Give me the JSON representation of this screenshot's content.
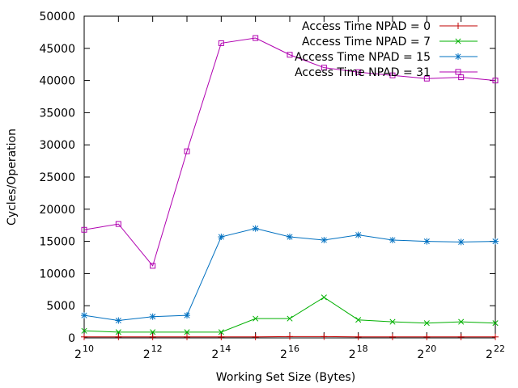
{
  "chart_data": {
    "type": "line",
    "title": "",
    "xlabel": "Working Set Size (Bytes)",
    "ylabel": "Cycles/Operation",
    "x_scale": "log2",
    "xlim": [
      10,
      22
    ],
    "ylim": [
      0,
      50000
    ],
    "x_ticks": [
      {
        "base": "2",
        "exp": "10"
      },
      {
        "base": "2",
        "exp": "12"
      },
      {
        "base": "2",
        "exp": "14"
      },
      {
        "base": "2",
        "exp": "16"
      },
      {
        "base": "2",
        "exp": "18"
      },
      {
        "base": "2",
        "exp": "20"
      },
      {
        "base": "2",
        "exp": "22"
      }
    ],
    "y_ticks": [
      "0",
      "5000",
      "10000",
      "15000",
      "20000",
      "25000",
      "30000",
      "35000",
      "40000",
      "45000",
      "50000"
    ],
    "grid": false,
    "legend_position": "top-right",
    "x_exponents": [
      10,
      11,
      12,
      13,
      14,
      15,
      16,
      17,
      18,
      19,
      20,
      21,
      22
    ],
    "series": [
      {
        "name": "Access Time NPAD = 0",
        "color": "#c00000",
        "marker": "plus",
        "values": [
          150,
          150,
          150,
          150,
          150,
          150,
          200,
          200,
          150,
          150,
          150,
          150,
          150
        ]
      },
      {
        "name": "Access Time NPAD = 7",
        "color": "#00b000",
        "marker": "cross",
        "values": [
          1100,
          900,
          900,
          900,
          900,
          3000,
          3000,
          6300,
          2800,
          2500,
          2300,
          2500,
          2300
        ]
      },
      {
        "name": "Access Time NPAD = 15",
        "color": "#0070c0",
        "marker": "asterisk",
        "values": [
          3500,
          2700,
          3300,
          3500,
          15700,
          17000,
          15700,
          15200,
          16000,
          15200,
          15000,
          14900,
          15000
        ]
      },
      {
        "name": "Access Time NPAD = 31",
        "color": "#b000b0",
        "marker": "square",
        "values": [
          16800,
          17700,
          11200,
          29000,
          45800,
          46600,
          44000,
          42000,
          41300,
          40800,
          40300,
          40500,
          40000
        ]
      }
    ]
  }
}
